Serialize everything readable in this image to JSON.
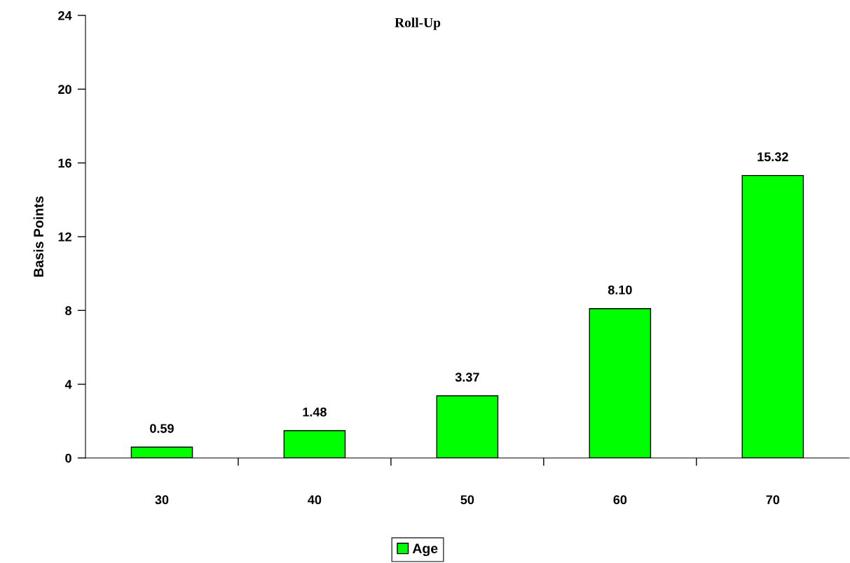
{
  "chart_data": {
    "type": "bar",
    "title": "Roll-Up",
    "ylabel": "Basis Points",
    "categories": [
      "30",
      "40",
      "50",
      "60",
      "70"
    ],
    "series": [
      {
        "name": "Age",
        "color": "#00ff00",
        "values": [
          0.59,
          1.48,
          3.37,
          8.1,
          15.32
        ]
      }
    ],
    "value_labels": [
      "0.59",
      "1.48",
      "3.37",
      "8.10",
      "15.32"
    ],
    "ylim": [
      0,
      24
    ],
    "yticks": [
      0,
      4,
      8,
      12,
      16,
      20,
      24
    ],
    "grid": false,
    "legend": "bottom"
  }
}
